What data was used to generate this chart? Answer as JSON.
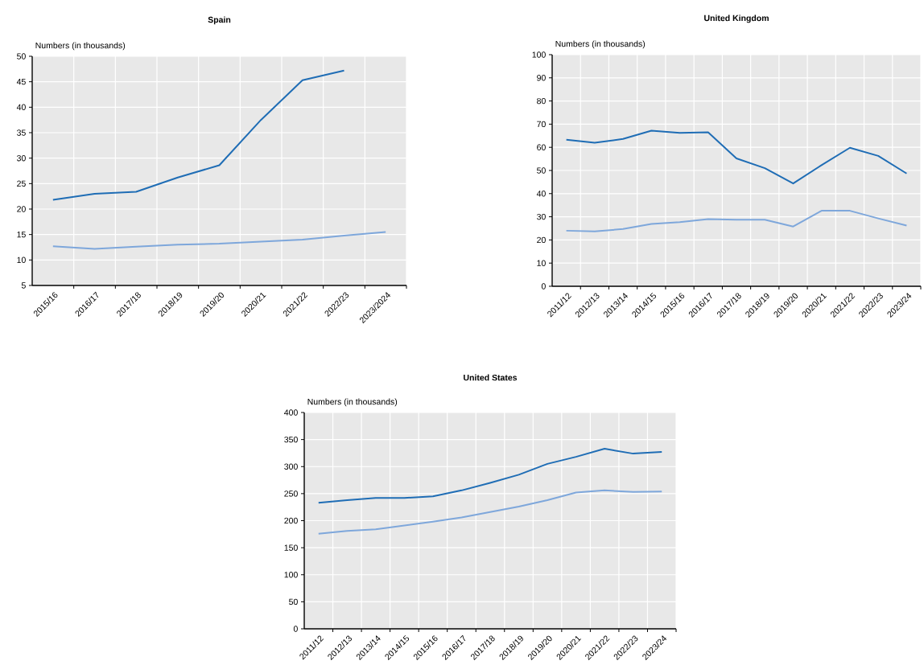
{
  "chart_data": [
    {
      "type": "line",
      "title": "Spain",
      "ylabel": "Numbers (in thousands)",
      "categories": [
        "2015/16",
        "2016/17",
        "2017/18",
        "2018/19",
        "2019/20",
        "2020/21",
        "2021/22",
        "2022/23",
        "2023/2024"
      ],
      "series": [
        {
          "color": "#1f6db5",
          "values": [
            21.8,
            23.0,
            23.4,
            26.2,
            28.6,
            37.5,
            45.3,
            47.2,
            null
          ]
        },
        {
          "color": "#7ea7db",
          "values": [
            12.7,
            12.2,
            12.6,
            13.0,
            13.2,
            13.6,
            14.0,
            14.8,
            15.5
          ]
        }
      ],
      "ylim": [
        5,
        50
      ],
      "yticks": [
        5,
        10,
        15,
        20,
        25,
        30,
        35,
        40,
        45,
        50
      ],
      "grid": true
    },
    {
      "type": "line",
      "title": "United Kingdom",
      "ylabel": "Numbers (in thousands)",
      "categories": [
        "2011/12",
        "2012/13",
        "2013/14",
        "2014/15",
        "2015/16",
        "2016/17",
        "2017/18",
        "2018/19",
        "2019/20",
        "2020/21",
        "2021/22",
        "2022/23",
        "2023/24"
      ],
      "series": [
        {
          "color": "#1f6db5",
          "values": [
            63.3,
            62.0,
            63.6,
            67.2,
            66.2,
            66.5,
            55.2,
            51.0,
            44.4,
            52.3,
            59.8,
            56.3,
            48.7
          ]
        },
        {
          "color": "#7ea7db",
          "values": [
            24.0,
            23.7,
            24.7,
            26.9,
            27.7,
            29.0,
            28.7,
            28.7,
            25.8,
            32.6,
            32.6,
            29.3,
            26.2
          ]
        }
      ],
      "ylim": [
        0,
        100
      ],
      "yticks": [
        0,
        10,
        20,
        30,
        40,
        50,
        60,
        70,
        80,
        90,
        100
      ],
      "grid": true
    },
    {
      "type": "line",
      "title": "United States",
      "ylabel": "Numbers (in thousands)",
      "categories": [
        "2011/12",
        "2012/13",
        "2013/14",
        "2014/15",
        "2015/16",
        "2016/17",
        "2017/18",
        "2018/19",
        "2019/20",
        "2020/21",
        "2021/22",
        "2022/23",
        "2023/24"
      ],
      "series": [
        {
          "color": "#1f6db5",
          "values": [
            233,
            238,
            242,
            242,
            245,
            256,
            270,
            285,
            305,
            318,
            333,
            324,
            327
          ]
        },
        {
          "color": "#7ea7db",
          "values": [
            176,
            181,
            184,
            191,
            198,
            206,
            216,
            226,
            238,
            252,
            256,
            253,
            254
          ]
        }
      ],
      "ylim": [
        0,
        400
      ],
      "yticks": [
        0,
        50,
        100,
        150,
        200,
        250,
        300,
        350,
        400
      ],
      "grid": true
    }
  ]
}
